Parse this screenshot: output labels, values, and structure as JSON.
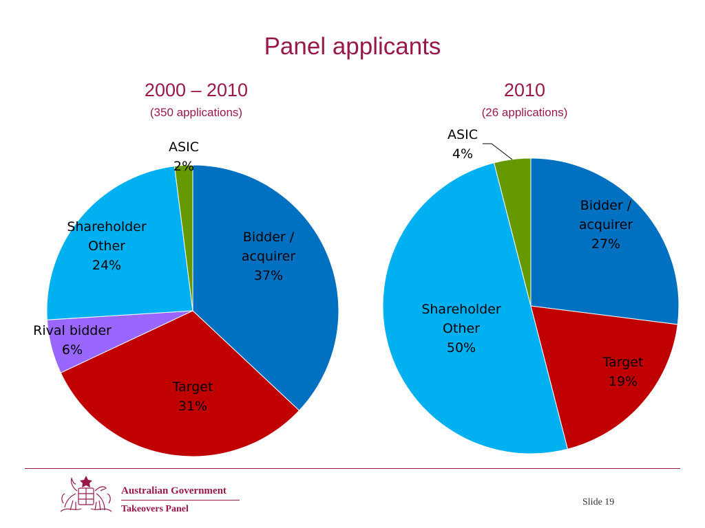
{
  "slide": {
    "title": "Panel applicants",
    "number_label": "Slide 19"
  },
  "footer": {
    "organisation": "Australian Government",
    "unit": "Takeovers Panel"
  },
  "colors": {
    "title": "#99184a",
    "bidder": "#0070c0",
    "target": "#c00000",
    "rival": "#9966ff",
    "shareholder": "#00b0f0",
    "asic": "#669900"
  },
  "chart_data": [
    {
      "type": "pie",
      "title": "2000 – 2010",
      "subtitle": "(350 applications)",
      "slices": [
        {
          "label_lines": [
            "Bidder /",
            "acquirer",
            "37%"
          ],
          "value": 37,
          "color": "#0070c0"
        },
        {
          "label_lines": [
            "Target",
            "31%"
          ],
          "value": 31,
          "color": "#c00000"
        },
        {
          "label_lines": [
            "Rival bidder",
            "6%"
          ],
          "value": 6,
          "color": "#9966ff"
        },
        {
          "label_lines": [
            "Shareholder",
            "Other",
            "24%"
          ],
          "value": 24,
          "color": "#00b0f0"
        },
        {
          "label_lines": [
            "ASIC",
            "2%"
          ],
          "value": 2,
          "color": "#669900"
        }
      ]
    },
    {
      "type": "pie",
      "title": "2010",
      "subtitle": "(26 applications)",
      "slices": [
        {
          "label_lines": [
            "Bidder /",
            "acquirer",
            "27%"
          ],
          "value": 27,
          "color": "#0070c0"
        },
        {
          "label_lines": [
            "Target",
            "19%"
          ],
          "value": 19,
          "color": "#c00000"
        },
        {
          "label_lines": [
            "Shareholder",
            "Other",
            "50%"
          ],
          "value": 50,
          "color": "#00b0f0"
        },
        {
          "label_lines": [
            "ASIC",
            "4%"
          ],
          "value": 4,
          "color": "#669900"
        }
      ]
    }
  ]
}
